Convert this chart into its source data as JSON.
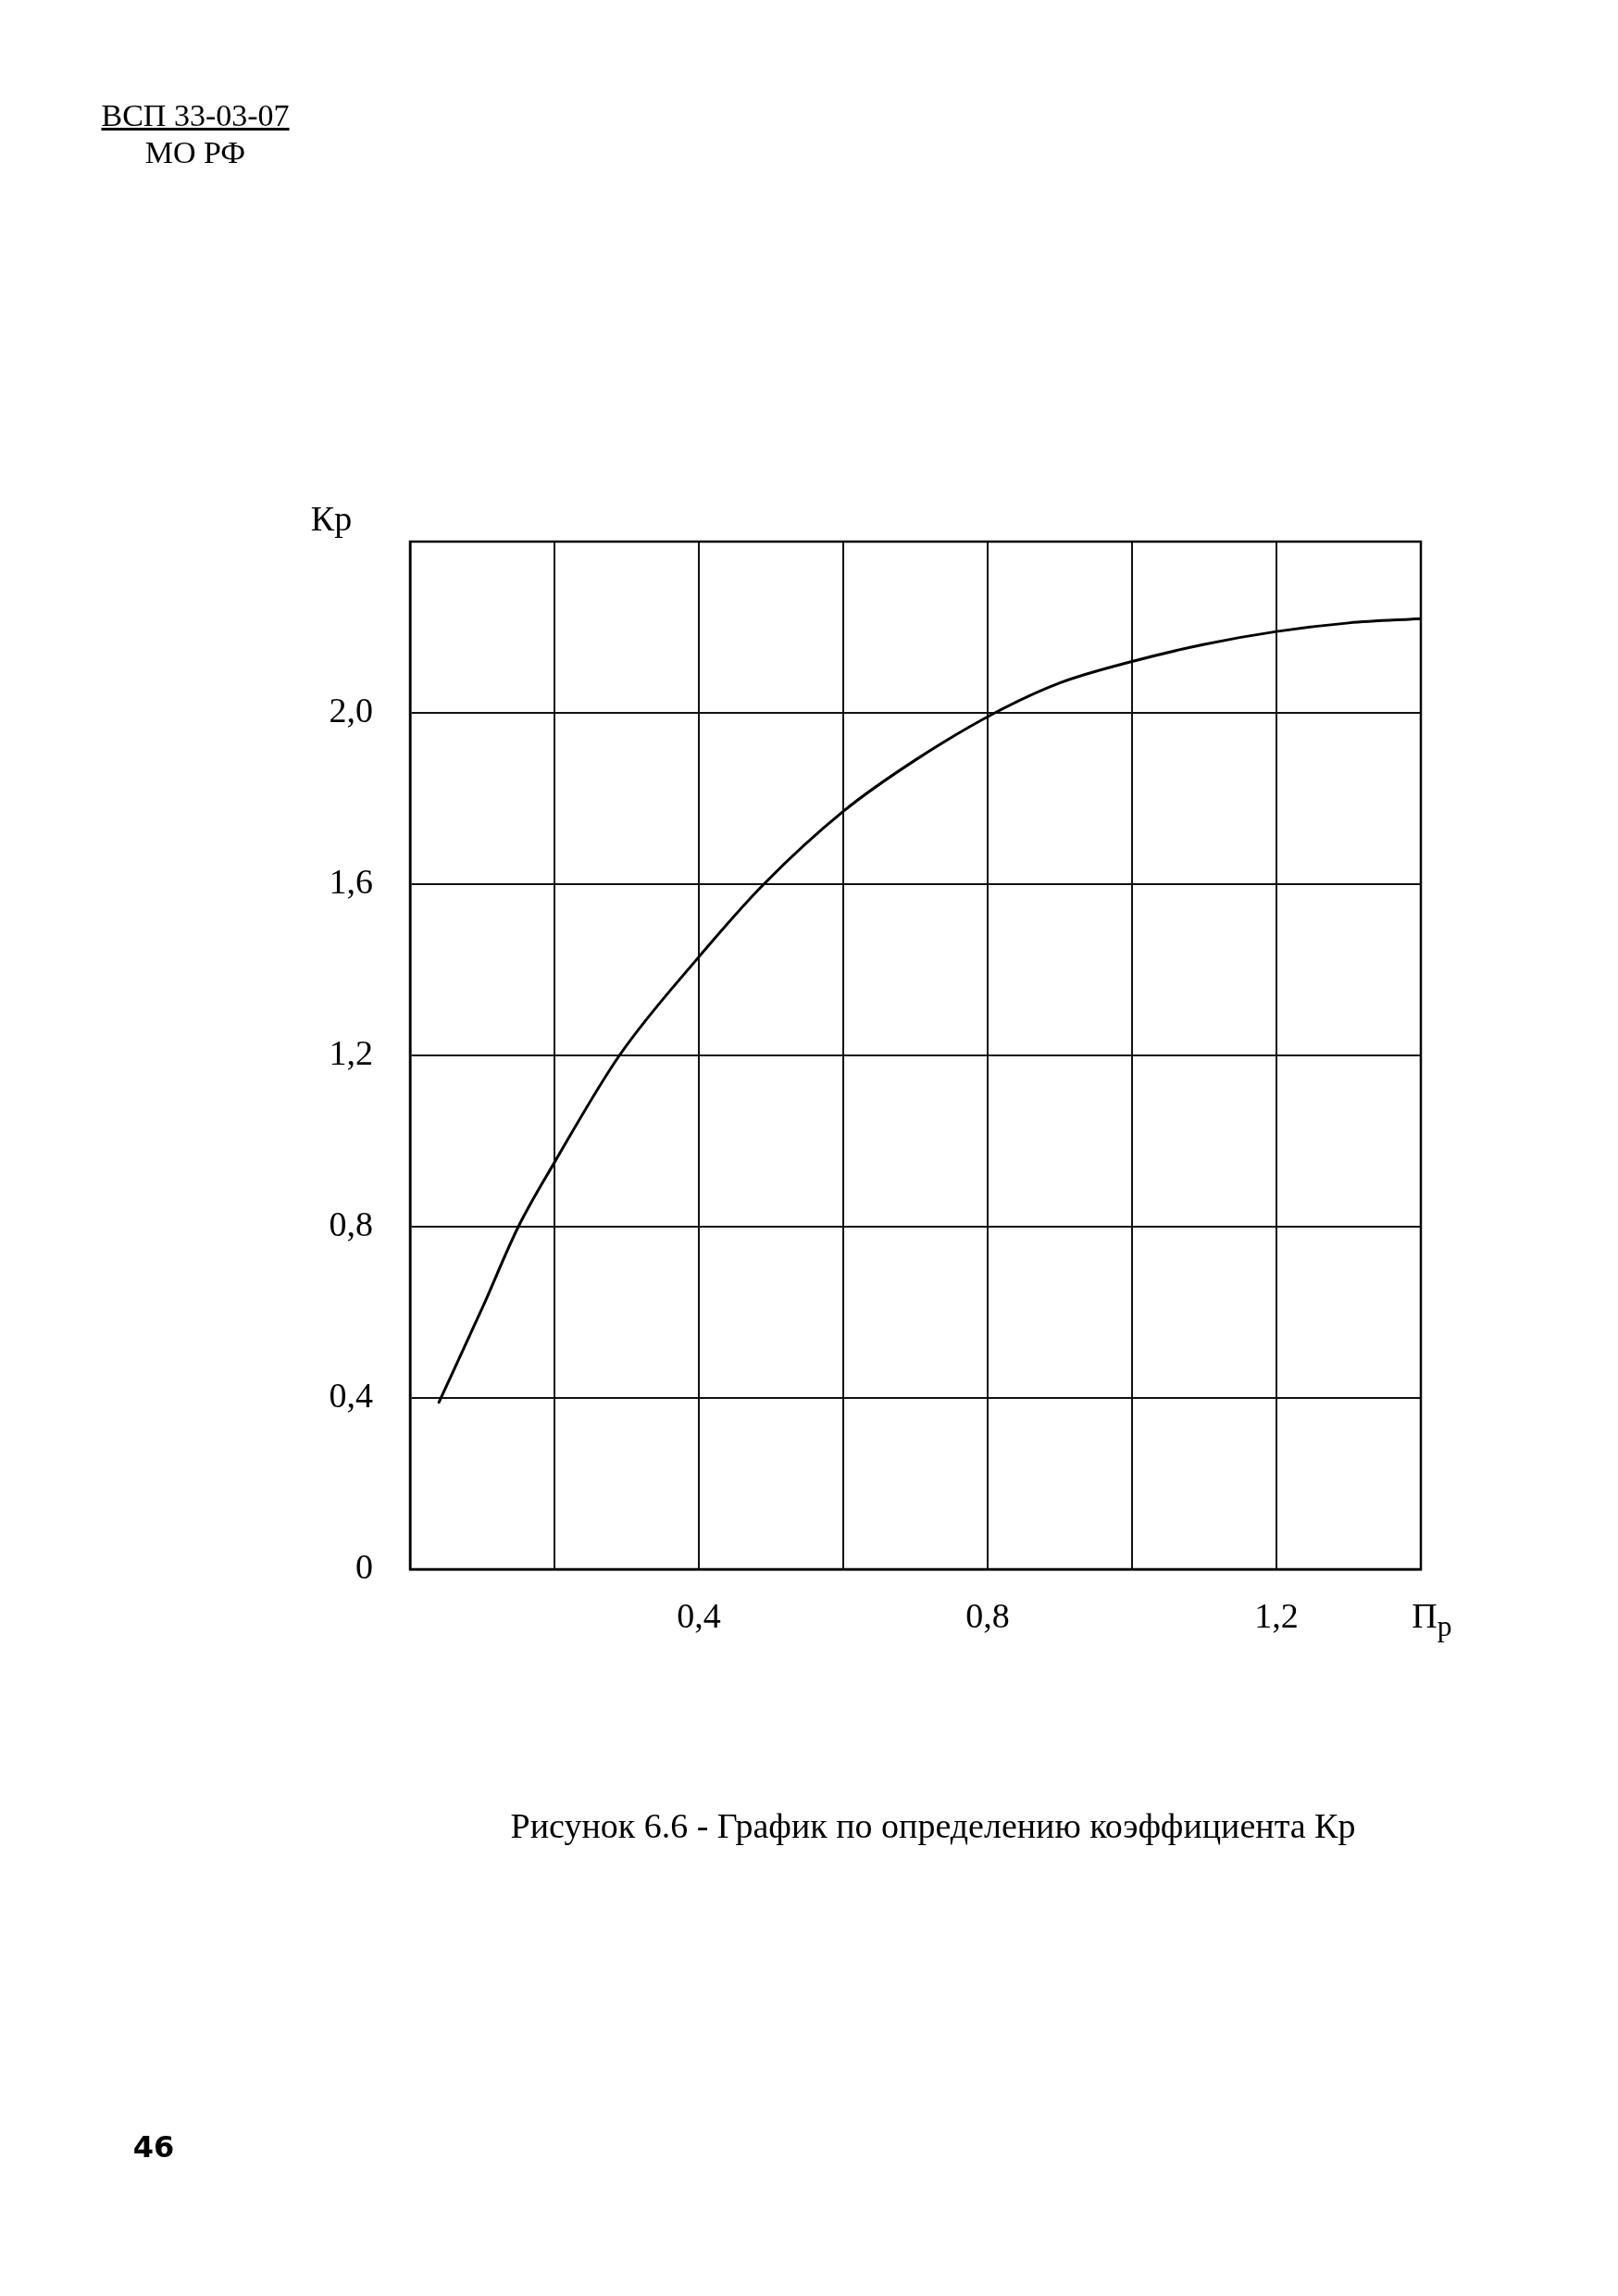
{
  "chart_data": {
    "type": "line",
    "title": "Рисунок 6.6 - График по определению коэффициента Кр",
    "xlabel": "П$_{р}$",
    "ylabel": "Кр",
    "annotations": [
      "ВСП 33-03-07",
      "МО РФ",
      "46"
    ],
    "x": [
      0.04,
      0.1,
      0.15,
      0.2,
      0.29,
      0.4,
      0.49,
      0.6,
      0.7,
      0.81,
      0.9,
      1.0,
      1.1,
      1.2,
      1.3,
      1.4
    ],
    "series": [
      {
        "color": "#000000",
        "values": [
          0.39,
          0.61,
          0.8,
          0.95,
          1.2,
          1.43,
          1.6,
          1.77,
          1.89,
          2.0,
          2.07,
          2.12,
          2.16,
          2.19,
          2.21,
          2.22
        ]
      }
    ],
    "xlim": [
      0,
      1.4
    ],
    "ylim": [
      0,
      2.4
    ],
    "xticks": [
      {
        "value": 0,
        "label": null
      },
      {
        "value": 0.2,
        "label": null
      },
      {
        "value": 0.4,
        "label": "0,4"
      },
      {
        "value": 0.6,
        "label": null
      },
      {
        "value": 0.8,
        "label": "0,8"
      },
      {
        "value": 1.0,
        "label": null
      },
      {
        "value": 1.2,
        "label": "1,2"
      },
      {
        "value": 1.4,
        "label": null
      }
    ],
    "yticks": [
      0,
      {
        "value": 0.4,
        "label": "0,4"
      },
      {
        "value": 0.8,
        "label": "0,8"
      },
      {
        "value": 1.2,
        "label": "1,2"
      },
      {
        "value": 1.6,
        "label": "1,6"
      },
      {
        "value": 2.0,
        "label": "2,0"
      },
      {
        "value": 2.4,
        "label": null
      }
    ],
    "grid": true,
    "legend": false,
    "marker": "none",
    "line_style": "solid"
  }
}
